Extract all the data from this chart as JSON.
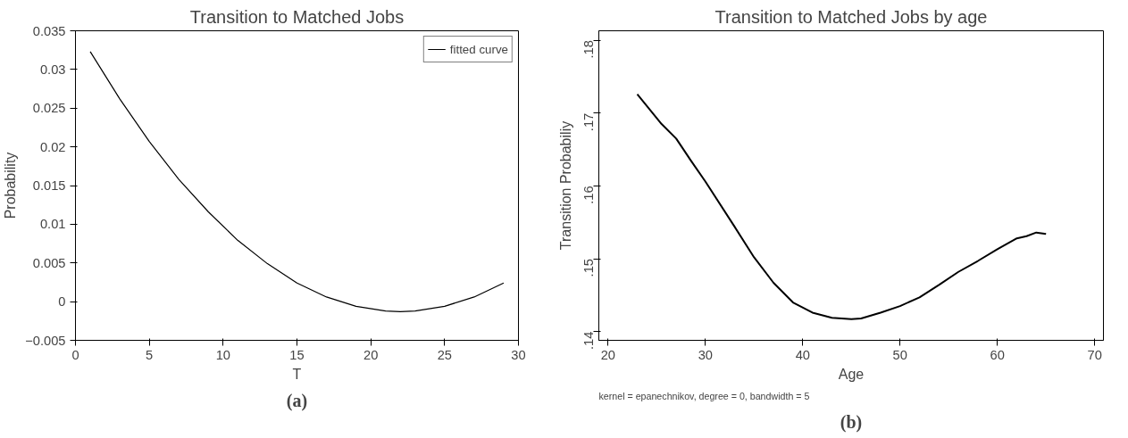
{
  "chart_data": [
    {
      "type": "line",
      "title": "Transition to Matched Jobs",
      "xlabel": "T",
      "ylabel": "Probability",
      "x": [
        1,
        3,
        5,
        7,
        9,
        11,
        13,
        15,
        17,
        19,
        21,
        22,
        23,
        25,
        27,
        29
      ],
      "series": [
        {
          "name": "fitted curve",
          "color": "#000000",
          "values": [
            0.0323,
            0.0262,
            0.0207,
            0.0158,
            0.0116,
            0.0079,
            0.0049,
            0.0024,
            0.0006,
            -0.0006,
            -0.0012,
            -0.0013,
            -0.0012,
            -0.0006,
            0.0006,
            0.0024
          ]
        }
      ],
      "xlim": [
        0,
        30
      ],
      "xticks": [
        0,
        5,
        10,
        15,
        20,
        25,
        30
      ],
      "ylim": [
        -0.005,
        0.035
      ],
      "yticks": [
        {
          "value": -0.005,
          "label": "−0.005"
        },
        0,
        0.005,
        0.01,
        0.015,
        0.02,
        0.025,
        0.03,
        0.035
      ],
      "legend": "top right",
      "grid": false,
      "annotations": [
        "(a)"
      ]
    },
    {
      "type": "line",
      "title": "Transition to Matched Jobs by age",
      "xlabel": "Age",
      "ylabel": "Transition Probabiliy",
      "x": [
        23,
        25.5,
        27,
        28.5,
        30,
        33,
        35,
        37,
        39,
        41,
        43,
        45,
        46,
        48,
        50,
        52,
        54,
        56,
        58,
        60,
        62,
        63,
        64,
        65
      ],
      "series": [
        {
          "color": "#000000",
          "values": [
            0.1726,
            0.1685,
            0.1665,
            0.1635,
            0.1606,
            0.1544,
            0.1502,
            0.1467,
            0.144,
            0.1426,
            0.1419,
            0.1417,
            0.1418,
            0.1426,
            0.1435,
            0.1447,
            0.1464,
            0.1482,
            0.1497,
            0.1513,
            0.1528,
            0.1531,
            0.1536,
            0.1534
          ]
        }
      ],
      "xlim": [
        19.05,
        70.9
      ],
      "xticks": [
        20,
        30,
        40,
        50,
        60,
        70
      ],
      "ylim": [
        0.1388,
        0.1813
      ],
      "yticks": [
        {
          "value": 0.14,
          "label": ".14"
        },
        {
          "value": 0.15,
          "label": ".15"
        },
        {
          "value": 0.16,
          "label": ".16"
        },
        {
          "value": 0.17,
          "label": ".17"
        },
        {
          "value": 0.18,
          "label": ".18"
        }
      ],
      "grid": false,
      "annotations": [
        "kernel = epanechnikov, degree = 0, bandwidth = 5",
        "(b)"
      ]
    }
  ]
}
